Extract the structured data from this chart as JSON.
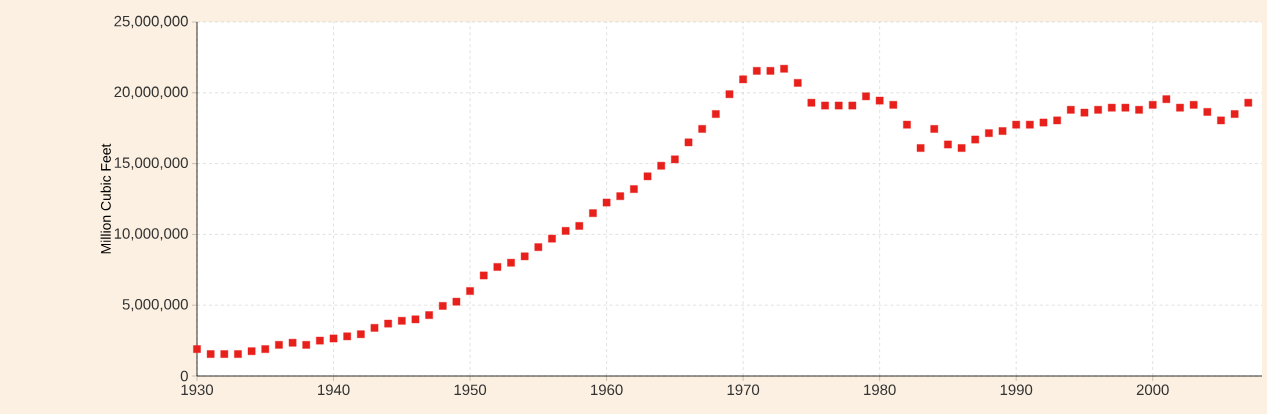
{
  "chart_data": {
    "type": "scatter",
    "ylabel": "Million Cubic Feet",
    "x": [
      1930,
      1931,
      1932,
      1933,
      1934,
      1935,
      1936,
      1937,
      1938,
      1939,
      1940,
      1941,
      1942,
      1943,
      1944,
      1945,
      1946,
      1947,
      1948,
      1949,
      1950,
      1951,
      1952,
      1953,
      1954,
      1955,
      1956,
      1957,
      1958,
      1959,
      1960,
      1961,
      1962,
      1963,
      1964,
      1965,
      1966,
      1967,
      1968,
      1969,
      1970,
      1971,
      1972,
      1973,
      1974,
      1975,
      1976,
      1977,
      1978,
      1979,
      1980,
      1981,
      1982,
      1983,
      1984,
      1985,
      1986,
      1987,
      1988,
      1989,
      1990,
      1991,
      1992,
      1993,
      1994,
      1995,
      1996,
      1997,
      1998,
      1999,
      2000,
      2001,
      2002,
      2003,
      2004,
      2005,
      2006,
      2007
    ],
    "series": [
      {
        "color": "#e8201c",
        "values": [
          1900000,
          1550000,
          1550000,
          1550000,
          1750000,
          1900000,
          2200000,
          2350000,
          2200000,
          2500000,
          2650000,
          2800000,
          2950000,
          3400000,
          3700000,
          3900000,
          4000000,
          4300000,
          4950000,
          5250000,
          6000000,
          7100000,
          7700000,
          8000000,
          8450000,
          9100000,
          9700000,
          10250000,
          10600000,
          11500000,
          12250000,
          12700000,
          13200000,
          14100000,
          14850000,
          15300000,
          16500000,
          17450000,
          18500000,
          19900000,
          20950000,
          21550000,
          21550000,
          21700000,
          20700000,
          19300000,
          19100000,
          19100000,
          19100000,
          19750000,
          19450000,
          19150000,
          17750000,
          16100000,
          17450000,
          16350000,
          16100000,
          16700000,
          17150000,
          17300000,
          17750000,
          17750000,
          17900000,
          18050000,
          18800000,
          18600000,
          18800000,
          18950000,
          18950000,
          18800000,
          19150000,
          19550000,
          18950000,
          19150000,
          18650000,
          18050000,
          18500000,
          19300000
        ]
      }
    ],
    "xlim": [
      1930,
      2008
    ],
    "xticks": [
      1930,
      1940,
      1950,
      1960,
      1970,
      1980,
      1990,
      2000
    ],
    "ylim": [
      0,
      25000000
    ],
    "yticks": [
      {
        "value": 0,
        "label": "0"
      },
      {
        "value": 5000000,
        "label": "5,000,000"
      },
      {
        "value": 10000000,
        "label": "10,000,000"
      },
      {
        "value": 15000000,
        "label": "15,000,000"
      },
      {
        "value": 20000000,
        "label": "20,000,000"
      },
      {
        "value": 25000000,
        "label": "25,000,000"
      }
    ],
    "grid": true,
    "marker": "square"
  }
}
